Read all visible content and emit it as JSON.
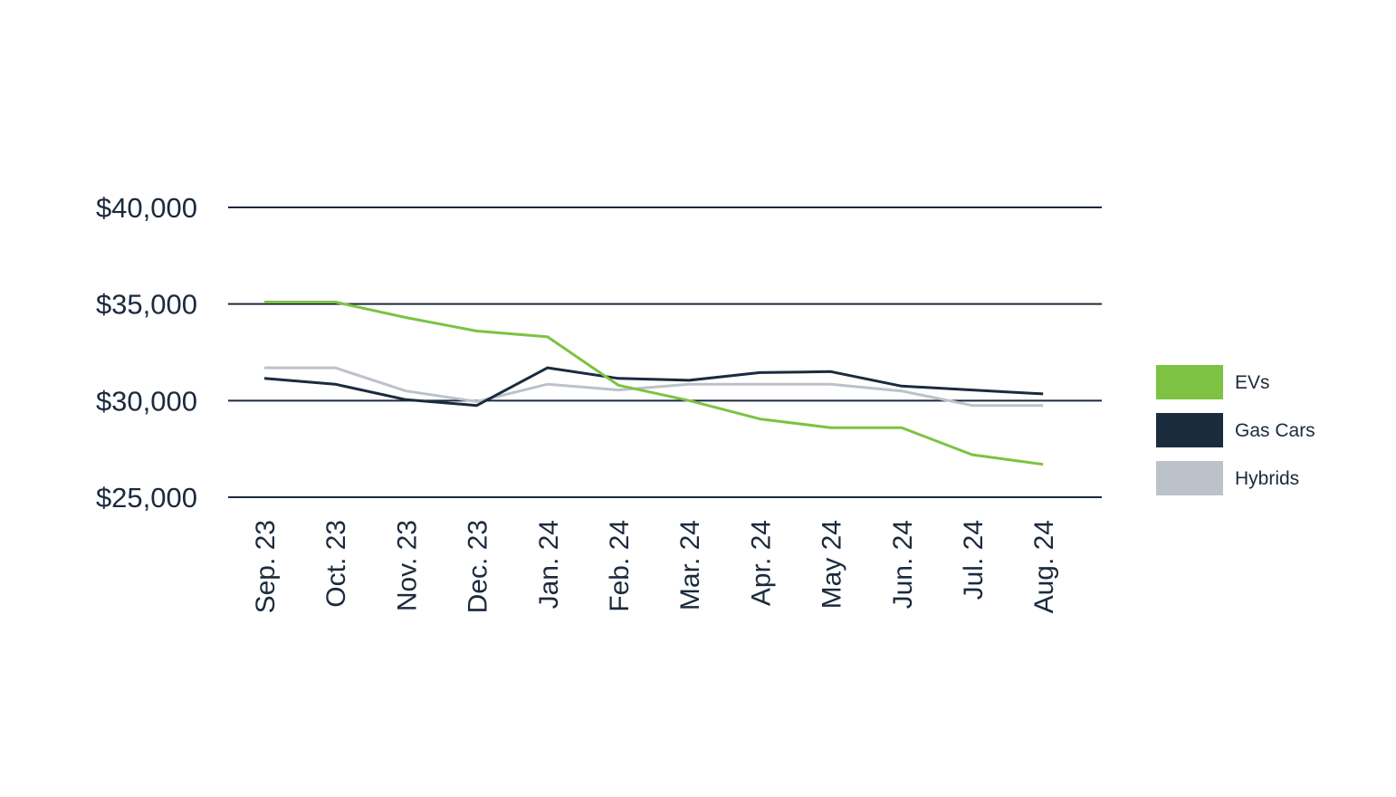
{
  "chart_data": {
    "type": "line",
    "title": "",
    "xlabel": "",
    "ylabel": "",
    "categories": [
      "Sep. 23",
      "Oct. 23",
      "Nov. 23",
      "Dec. 23",
      "Jan. 24",
      "Feb. 24",
      "Mar. 24",
      "Apr. 24",
      "May 24",
      "Jun. 24",
      "Jul. 24",
      "Aug. 24"
    ],
    "y_ticks": [
      {
        "value": 40000,
        "label": "$40,000"
      },
      {
        "value": 35000,
        "label": "$35,000"
      },
      {
        "value": 30000,
        "label": "$30,000"
      },
      {
        "value": 25000,
        "label": "$25,000"
      }
    ],
    "ylim": [
      25000,
      40000
    ],
    "grid": true,
    "legend_position": "right",
    "series": [
      {
        "name": "EVs",
        "color": "#7dc242",
        "values": [
          35100,
          35100,
          34300,
          33600,
          33300,
          30800,
          30000,
          29050,
          28600,
          28600,
          27200,
          26700
        ]
      },
      {
        "name": "Gas Cars",
        "color": "#1b2b3e",
        "values": [
          31150,
          30850,
          30050,
          29750,
          31700,
          31150,
          31050,
          31450,
          31500,
          30750,
          30550,
          30350
        ]
      },
      {
        "name": "Hybrids",
        "color": "#bcc2c9",
        "values": [
          31700,
          31700,
          30500,
          29950,
          30850,
          30550,
          30850,
          30850,
          30850,
          30500,
          29750,
          29750
        ]
      }
    ]
  }
}
